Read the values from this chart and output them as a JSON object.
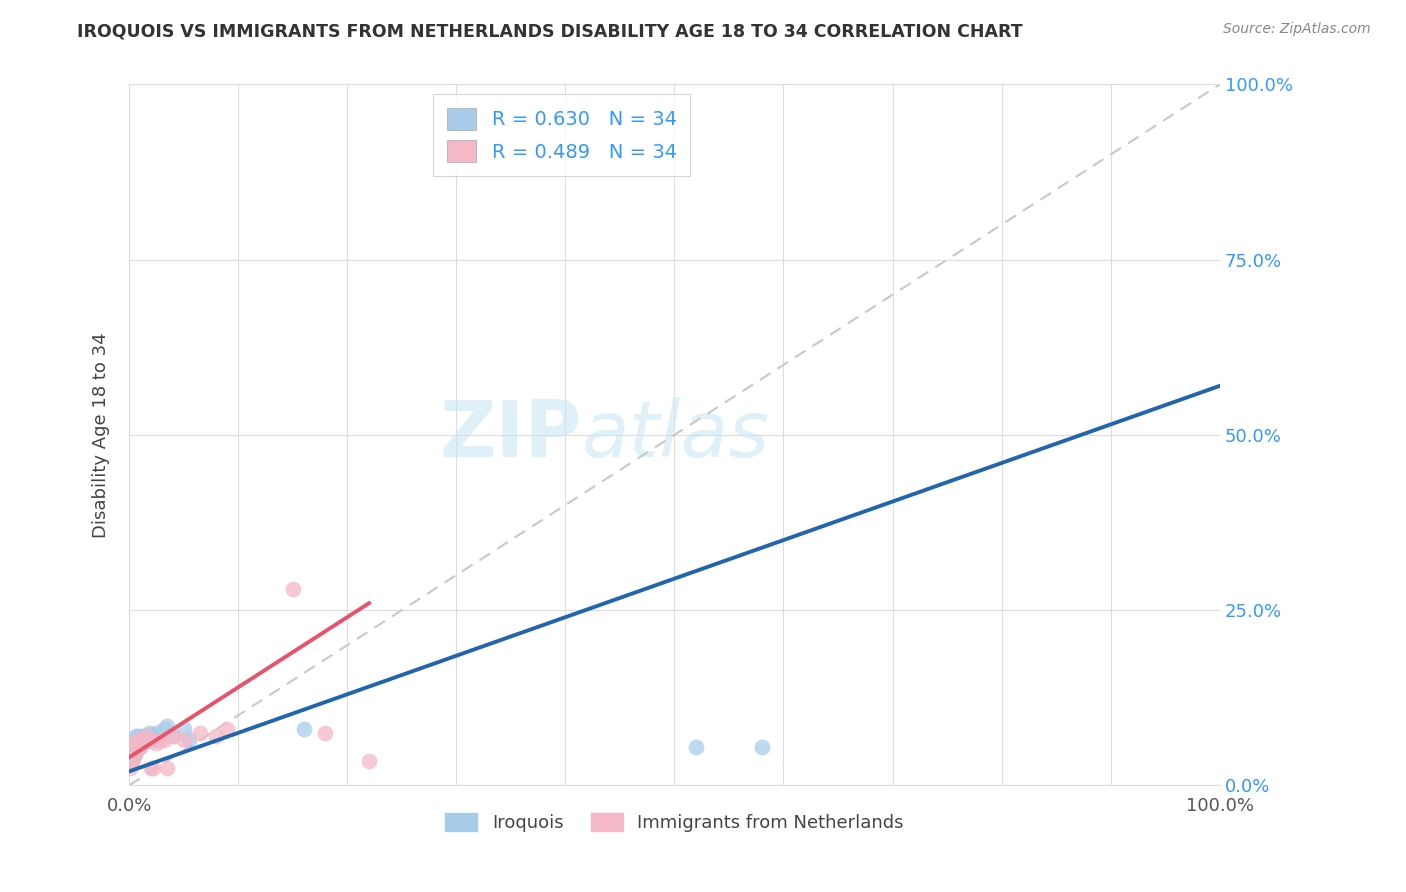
{
  "title": "IROQUOIS VS IMMIGRANTS FROM NETHERLANDS DISABILITY AGE 18 TO 34 CORRELATION CHART",
  "source": "Source: ZipAtlas.com",
  "ylabel": "Disability Age 18 to 34",
  "legend_label_blue": "Iroquois",
  "legend_label_pink": "Immigrants from Netherlands",
  "R_blue": 0.63,
  "N_blue": 34,
  "R_pink": 0.489,
  "N_pink": 34,
  "watermark_zip": "ZIP",
  "watermark_atlas": "atlas",
  "blue_scatter_color": "#a8cce8",
  "pink_scatter_color": "#f4b8c8",
  "blue_line_color": "#2166ac",
  "pink_line_color": "#e8536a",
  "diagonal_color": "#c8c8c8",
  "iroquois_x": [
    0.001,
    0.002,
    0.003,
    0.003,
    0.004,
    0.004,
    0.005,
    0.005,
    0.006,
    0.006,
    0.007,
    0.007,
    0.008,
    0.009,
    0.01,
    0.011,
    0.012,
    0.013,
    0.014,
    0.015,
    0.016,
    0.018,
    0.02,
    0.022,
    0.025,
    0.028,
    0.032,
    0.035,
    0.04,
    0.05,
    0.055,
    0.16,
    0.52,
    0.58
  ],
  "iroquois_y": [
    0.05,
    0.04,
    0.06,
    0.035,
    0.055,
    0.04,
    0.06,
    0.045,
    0.07,
    0.05,
    0.055,
    0.065,
    0.07,
    0.06,
    0.055,
    0.065,
    0.07,
    0.06,
    0.065,
    0.07,
    0.065,
    0.075,
    0.065,
    0.07,
    0.075,
    0.065,
    0.08,
    0.085,
    0.07,
    0.08,
    0.065,
    0.08,
    0.055,
    0.055
  ],
  "netherlands_x": [
    0.001,
    0.002,
    0.002,
    0.003,
    0.003,
    0.004,
    0.004,
    0.005,
    0.005,
    0.006,
    0.006,
    0.007,
    0.008,
    0.009,
    0.01,
    0.012,
    0.013,
    0.015,
    0.016,
    0.018,
    0.02,
    0.022,
    0.025,
    0.028,
    0.032,
    0.035,
    0.04,
    0.05,
    0.065,
    0.08,
    0.09,
    0.15,
    0.18,
    0.22
  ],
  "netherlands_y": [
    0.025,
    0.03,
    0.04,
    0.035,
    0.05,
    0.04,
    0.06,
    0.045,
    0.055,
    0.05,
    0.06,
    0.055,
    0.065,
    0.06,
    0.055,
    0.065,
    0.06,
    0.065,
    0.07,
    0.065,
    0.025,
    0.025,
    0.06,
    0.065,
    0.065,
    0.025,
    0.07,
    0.065,
    0.075,
    0.07,
    0.08,
    0.28,
    0.075,
    0.035
  ],
  "blue_line_x0": 0.0,
  "blue_line_y0": 0.02,
  "blue_line_x1": 1.0,
  "blue_line_y1": 0.57,
  "pink_line_x0": 0.0,
  "pink_line_y0": 0.04,
  "pink_line_x1": 0.22,
  "pink_line_y1": 0.26,
  "xlim": [
    0.0,
    1.0
  ],
  "ylim": [
    0.0,
    1.0
  ],
  "x_ticks": [
    0.0,
    0.1,
    0.2,
    0.3,
    0.4,
    0.5,
    0.6,
    0.7,
    0.8,
    0.9,
    1.0
  ],
  "y_ticks": [
    0.0,
    0.25,
    0.5,
    0.75,
    1.0
  ]
}
